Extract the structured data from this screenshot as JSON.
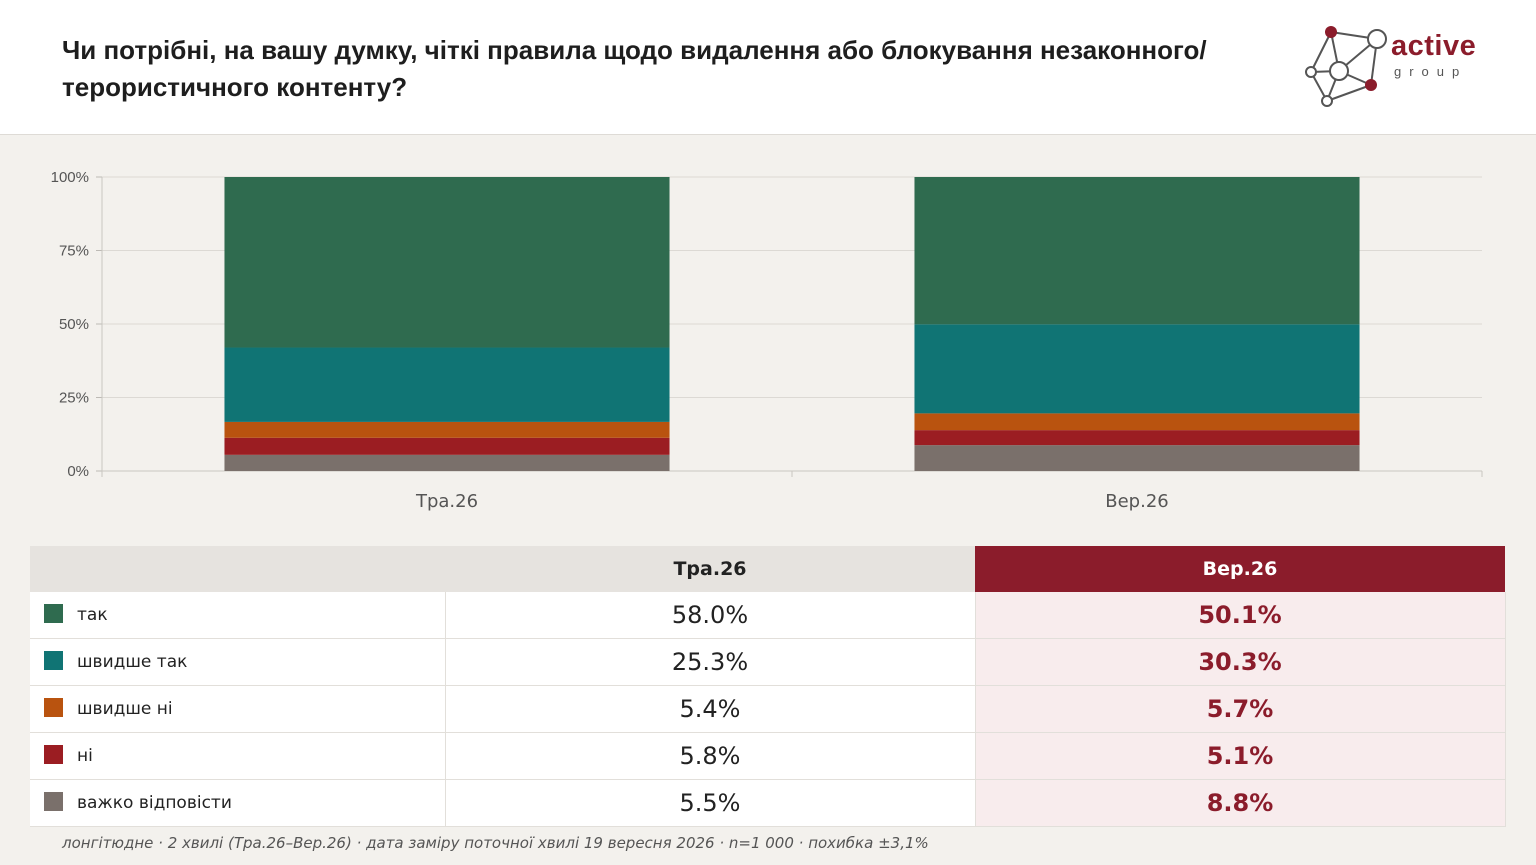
{
  "header": {
    "title": "Чи потрібні, на вашу думку, чіткі правила щодо видалення або блокування незаконного/терористичного контенту?",
    "logo": {
      "word": "active",
      "sub": "group"
    }
  },
  "colors": {
    "accent": "#8b1c2b",
    "current_bg": "#f8eced"
  },
  "chart_data": {
    "type": "bar",
    "stacked": true,
    "categories": [
      "Тра.26",
      "Вер.26"
    ],
    "yticks": [
      "100%",
      "75%",
      "50%",
      "25%",
      "0%"
    ],
    "ylim": [
      0,
      100
    ],
    "grid": true,
    "series": [
      {
        "name": "важко відповісти",
        "color": "#7a706b",
        "values": [
          5.5,
          8.8
        ]
      },
      {
        "name": "ні",
        "color": "#9b1d22",
        "values": [
          5.8,
          5.1
        ]
      },
      {
        "name": "швидше ні",
        "color": "#b9530f",
        "values": [
          5.4,
          5.7
        ]
      },
      {
        "name": "швидше так",
        "color": "#107474",
        "values": [
          25.3,
          30.3
        ]
      },
      {
        "name": "так",
        "color": "#2f6b4f",
        "values": [
          58.0,
          50.1
        ]
      }
    ]
  },
  "table": {
    "columns": [
      "Тра.26",
      "Вер.26"
    ],
    "rows": [
      {
        "label": "так",
        "color": "#2f6b4f",
        "prev": "58.0%",
        "cur": "50.1%"
      },
      {
        "label": "швидше так",
        "color": "#107474",
        "prev": "25.3%",
        "cur": "30.3%"
      },
      {
        "label": "швидше ні",
        "color": "#b9530f",
        "prev": "5.4%",
        "cur": "5.7%"
      },
      {
        "label": "ні",
        "color": "#9b1d22",
        "prev": "5.8%",
        "cur": "5.1%"
      },
      {
        "label": "важко відповісти",
        "color": "#7a706b",
        "prev": "5.5%",
        "cur": "8.8%"
      }
    ]
  },
  "footnote": "лонгітюдне · 2 хвилі (Тра.26–Вер.26) · дата заміру поточної хвилі 19 вересня 2026 · n=1 000 · похибка ±3,1%"
}
